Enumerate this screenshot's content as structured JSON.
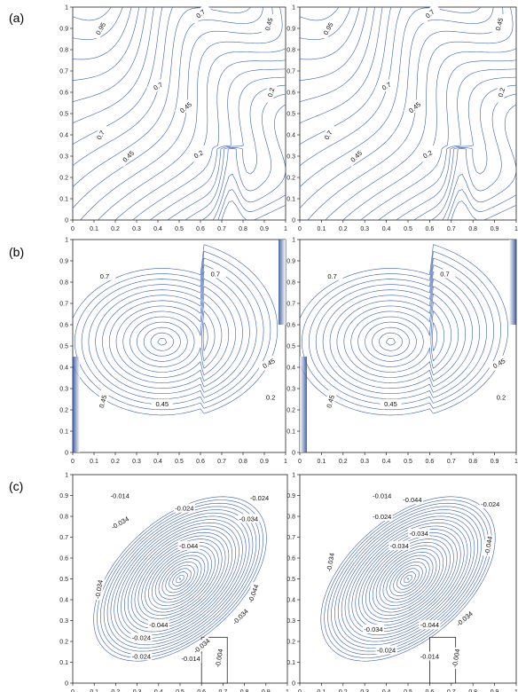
{
  "panel_labels": [
    "(a)",
    "(b)",
    "(c)"
  ],
  "line_color": "#3a5fb0",
  "axis_color": "#222222",
  "chart_data": [
    {
      "type": "contour",
      "panel": "(a)",
      "position": "left",
      "xlim": [
        0,
        1
      ],
      "ylim": [
        0,
        1
      ],
      "xticks": [
        "0",
        "0.1",
        "0.2",
        "0.3",
        "0.4",
        "0.5",
        "0.6",
        "0.7",
        "0.8",
        "0.9",
        "1"
      ],
      "yticks": [
        "0",
        "0.1",
        "0.2",
        "0.3",
        "0.4",
        "0.5",
        "0.6",
        "0.7",
        "0.8",
        "0.9",
        "1"
      ],
      "contour_labels": [
        "0.95",
        "0.7",
        "0.45",
        "0.7",
        "0.45",
        "0.2",
        "0.7",
        "0.45",
        "0.2"
      ]
    },
    {
      "type": "contour",
      "panel": "(a)",
      "position": "right",
      "xlim": [
        0,
        1
      ],
      "ylim": [
        0,
        1
      ],
      "xticks": [
        "0",
        "0.1",
        "0.2",
        "0.3",
        "0.4",
        "0.5",
        "0.6",
        "0.7",
        "0.8",
        "0.9",
        "1"
      ],
      "yticks": [
        "0",
        "0.1",
        "0.2",
        "0.3",
        "0.4",
        "0.5",
        "0.6",
        "0.7",
        "0.8",
        "0.9",
        "1"
      ],
      "contour_labels": [
        "0.95",
        "0.7",
        "0.45",
        "0.7",
        "0.45",
        "0.2",
        "0.7",
        "0.45",
        "0.2"
      ]
    },
    {
      "type": "contour",
      "panel": "(b)",
      "position": "left",
      "xlim": [
        0,
        1
      ],
      "ylim": [
        0,
        1
      ],
      "xticks": [
        "0",
        "0.1",
        "0.2",
        "0.3",
        "0.4",
        "0.5",
        "0.6",
        "0.7",
        "0.8",
        "0.9",
        "1"
      ],
      "yticks": [
        "0",
        "0.1",
        "0.2",
        "0.3",
        "0.4",
        "0.5",
        "0.6",
        "0.7",
        "0.8",
        "0.9",
        "1"
      ],
      "contour_labels": [
        "0.7",
        "0.7",
        "0.45",
        "0.45",
        "0.45",
        "0.2"
      ]
    },
    {
      "type": "contour",
      "panel": "(b)",
      "position": "right",
      "xlim": [
        0,
        1
      ],
      "ylim": [
        0,
        1
      ],
      "xticks": [
        "0",
        "0.1",
        "0.2",
        "0.3",
        "0.4",
        "0.5",
        "0.6",
        "0.7",
        "0.8",
        "0.9",
        "1"
      ],
      "yticks": [
        "0",
        "0.1",
        "0.2",
        "0.3",
        "0.4",
        "0.5",
        "0.6",
        "0.7",
        "0.8",
        "0.9",
        "1"
      ],
      "contour_labels": [
        "0.7",
        "0.7",
        "0.45",
        "0.45",
        "0.45",
        "0.2"
      ]
    },
    {
      "type": "contour",
      "panel": "(c)",
      "position": "left",
      "xlim": [
        0,
        1
      ],
      "ylim": [
        0,
        1
      ],
      "xticks": [
        "0",
        "0.1",
        "0.2",
        "0.3",
        "0.4",
        "0.5",
        "0.6",
        "0.7",
        "0.8",
        "0.9",
        "1"
      ],
      "yticks": [
        "0",
        "0.1",
        "0.2",
        "0.3",
        "0.4",
        "0.5",
        "0.6",
        "0.7",
        "0.8",
        "0.9",
        "1"
      ],
      "contour_labels": [
        "-0.014",
        "-0.024",
        "-0.024",
        "-0.034",
        "-0.034",
        "-0.044",
        "-0.034",
        "-0.044",
        "-0.044",
        "-0.034",
        "-0.024",
        "-0.034",
        "-0.024",
        "-0.014",
        "-0.004"
      ]
    },
    {
      "type": "contour",
      "panel": "(c)",
      "position": "right",
      "xlim": [
        0,
        1
      ],
      "ylim": [
        0,
        1
      ],
      "xticks": [
        "0",
        "0.1",
        "0.2",
        "0.3",
        "0.4",
        "0.5",
        "0.6",
        "0.7",
        "0.8",
        "0.9",
        "1"
      ],
      "yticks": [
        "0",
        "0.1",
        "0.2",
        "0.3",
        "0.4",
        "0.5",
        "0.6",
        "0.7",
        "0.8",
        "0.9",
        "1"
      ],
      "contour_labels": [
        "-0.014",
        "-0.024",
        "-0.024",
        "-0.034",
        "-0.044",
        "-0.034",
        "-0.034",
        "-0.044",
        "-0.034",
        "-0.044",
        "-0.034",
        "-0.024",
        "-0.014",
        "-0.004"
      ]
    }
  ]
}
